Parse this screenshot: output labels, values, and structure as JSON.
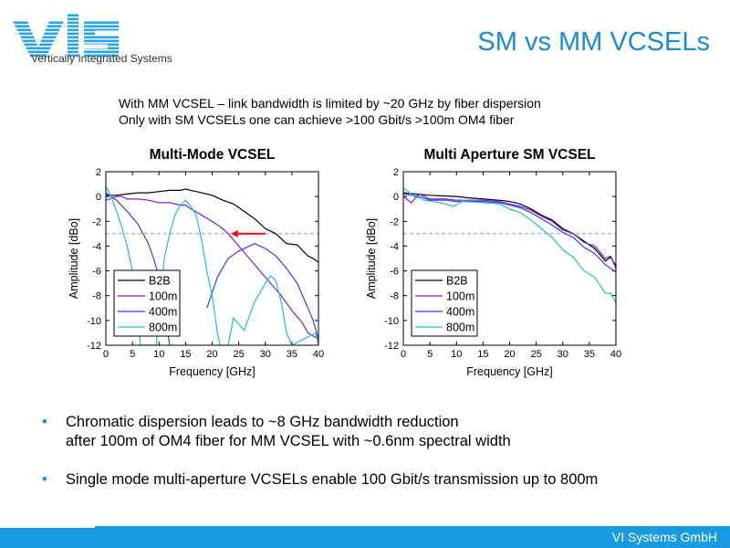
{
  "logo": {
    "mark": "VIS",
    "tagline": "Vertically Integrated Systems"
  },
  "title": "SM vs MM VCSELs",
  "intro": [
    "With MM VCSEL – link bandwidth is limited by ~20 GHz by fiber dispersion",
    "Only with SM VCSELs one can achieve >100 Gbit/s >100m OM4 fiber"
  ],
  "bullets": [
    [
      "Chromatic dispersion leads to ~8 GHz bandwidth reduction",
      "after 100m of OM4 fiber for MM VCSEL with ~0.6nm spectral width"
    ],
    [
      "Single mode multi-aperture VCSELs enable 100 Gbit/s transmission up to 800m"
    ]
  ],
  "bullet_symbol": "•",
  "footer": "VI Systems GmbH",
  "colors": {
    "accent": "#1a8ad4",
    "footer": "#1a9ae0",
    "B2B": "#000000",
    "100m": "#7a1fd0",
    "400m": "#2f3ff0",
    "800m": "#20c0c8",
    "arrow": "#ee1111"
  },
  "chart_data": [
    {
      "type": "line",
      "title": "Multi-Mode VCSEL",
      "xlabel": "Frequency [GHz]",
      "ylabel": "Amplitude [dBo]",
      "xlim": [
        0,
        40
      ],
      "ylim": [
        -12,
        2
      ],
      "xticks": [
        0,
        5,
        10,
        15,
        20,
        25,
        30,
        35,
        40
      ],
      "yticks": [
        2,
        0,
        -2,
        -4,
        -6,
        -8,
        -10,
        -12
      ],
      "reference_line": -3,
      "annotation": {
        "type": "arrow",
        "from": [
          30,
          -3
        ],
        "to": [
          23.5,
          -3
        ]
      },
      "legend": "bottom-left",
      "series": [
        {
          "name": "B2B",
          "x": [
            0,
            2,
            4,
            6,
            8,
            10,
            12,
            14,
            15,
            16,
            18,
            20,
            22,
            24,
            26,
            28,
            30,
            32,
            34,
            36,
            38,
            39,
            40
          ],
          "y": [
            0.1,
            0.1,
            0.2,
            0.3,
            0.3,
            0.4,
            0.5,
            0.5,
            0.6,
            0.5,
            0.3,
            0.1,
            -0.3,
            -0.6,
            -1.2,
            -1.8,
            -2.6,
            -3.0,
            -3.8,
            -3.9,
            -4.8,
            -5.0,
            -5.3
          ]
        },
        {
          "name": "100m",
          "x": [
            0,
            2,
            3,
            4,
            6,
            8,
            10,
            12,
            14,
            15,
            16,
            18,
            20,
            22,
            23,
            25,
            27,
            29,
            31,
            33,
            35,
            37,
            38,
            40
          ],
          "y": [
            -0.3,
            0,
            0,
            -0.2,
            -0.2,
            -0.3,
            -0.5,
            -0.5,
            -0.7,
            -0.7,
            -1.0,
            -1.5,
            -2.0,
            -2.6,
            -3.0,
            -4.0,
            -5.0,
            -6.0,
            -7.0,
            -8.0,
            -9.2,
            -10.2,
            -11.0,
            -11.5
          ]
        },
        {
          "name": "400m",
          "x": [
            0,
            1,
            2,
            4,
            6,
            8,
            9,
            10,
            11,
            12,
            17,
            19,
            21,
            23,
            25,
            27,
            28,
            30,
            32,
            34,
            36,
            38,
            39,
            40
          ],
          "y": [
            0.3,
            0,
            -0.3,
            -1.2,
            -2.2,
            -3.8,
            -5.0,
            -6.5,
            -9,
            -12,
            null,
            -9,
            -6.5,
            -5,
            -4.4,
            -4.0,
            -3.8,
            -4.2,
            -4.8,
            -5.8,
            -7.0,
            -9.0,
            -10.0,
            -11.5
          ]
        },
        {
          "name": "800m",
          "x": [
            0,
            1,
            2,
            3,
            4,
            5,
            6,
            6.5,
            9.5,
            10,
            11,
            12,
            13,
            14,
            15,
            16,
            17,
            18,
            19,
            20,
            21,
            21.5,
            23,
            24,
            25,
            26,
            28,
            30,
            31,
            32,
            33,
            34,
            35,
            39.5,
            40
          ],
          "y": [
            0.8,
            0,
            -1.2,
            -2.5,
            -4,
            -6,
            -9,
            -12,
            -12,
            -9,
            -5,
            -3,
            -1.5,
            -0.7,
            -0.3,
            -0.8,
            -1.5,
            -3.5,
            -6,
            -8,
            -11,
            -12,
            -12,
            -9.8,
            -10.3,
            -10.8,
            -8.5,
            -7,
            -6.4,
            -6.8,
            -8.5,
            -11,
            -12,
            -11,
            -12
          ]
        }
      ]
    },
    {
      "type": "line",
      "title": "Multi Aperture SM VCSEL",
      "xlabel": "Frequency [GHz]",
      "ylabel": "Amplitude [dBo]",
      "xlim": [
        0,
        40
      ],
      "ylim": [
        -12,
        2
      ],
      "xticks": [
        0,
        5,
        10,
        15,
        20,
        25,
        30,
        35,
        40
      ],
      "yticks": [
        2,
        0,
        -2,
        -4,
        -6,
        -8,
        -10,
        -12
      ],
      "reference_line": -3,
      "legend": "bottom-left",
      "series": [
        {
          "name": "B2B",
          "x": [
            0,
            5,
            10,
            12,
            15,
            18,
            20,
            22,
            24,
            26,
            28,
            30,
            32,
            34,
            36,
            38,
            39,
            40
          ],
          "y": [
            0.3,
            0.1,
            0,
            -0.1,
            -0.2,
            -0.3,
            -0.4,
            -0.6,
            -1.0,
            -1.5,
            -1.9,
            -2.6,
            -3.0,
            -3.6,
            -4.2,
            -5.2,
            -4.9,
            -5.6
          ]
        },
        {
          "name": "100m",
          "x": [
            0,
            1.5,
            3,
            5,
            8,
            10,
            12,
            15,
            18,
            20,
            22,
            24,
            26,
            28,
            30,
            32,
            34,
            36,
            38,
            39,
            40
          ],
          "y": [
            0,
            -0.5,
            0.2,
            -0.2,
            -0.2,
            -0.3,
            -0.3,
            -0.3,
            -0.4,
            -0.6,
            -0.8,
            -1.1,
            -1.6,
            -2.0,
            -2.7,
            -3.0,
            -3.7,
            -4.0,
            -5.0,
            -4.8,
            -5.8
          ]
        },
        {
          "name": "400m",
          "x": [
            0,
            3,
            5,
            8,
            10,
            15,
            18,
            20,
            22,
            24,
            26,
            28,
            30,
            32,
            34,
            36,
            38,
            40
          ],
          "y": [
            0.2,
            0,
            -0.3,
            -0.3,
            -0.4,
            -0.4,
            -0.5,
            -0.7,
            -0.9,
            -1.3,
            -1.8,
            -2.3,
            -2.9,
            -3.3,
            -4.1,
            -4.6,
            -5.5,
            -6.1
          ]
        },
        {
          "name": "800m",
          "x": [
            0,
            2,
            4,
            7,
            9.5,
            11,
            15,
            18,
            20,
            22,
            24,
            26,
            28,
            30,
            32,
            34,
            36,
            38,
            39,
            40
          ],
          "y": [
            0.7,
            0,
            -0.3,
            -0.5,
            -0.8,
            -0.4,
            -0.5,
            -0.6,
            -1.0,
            -1.3,
            -1.9,
            -2.6,
            -3.3,
            -4.3,
            -4.9,
            -6.0,
            -6.5,
            -7.8,
            -7.8,
            -8.6
          ]
        }
      ]
    }
  ]
}
